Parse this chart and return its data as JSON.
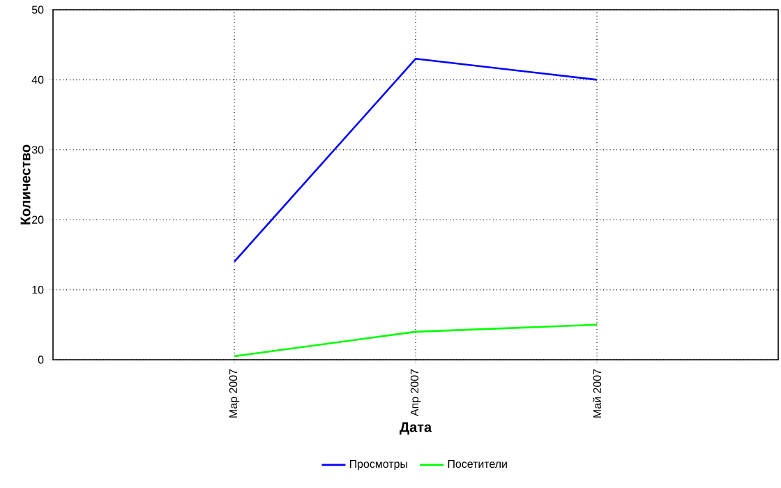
{
  "chart_data": {
    "type": "line",
    "xlabel": "Дата",
    "ylabel": "Количество",
    "categories": [
      "Мар 2007",
      "Апр 2007",
      "Май 2007"
    ],
    "series": [
      {
        "name": "Просмотры",
        "color": "#0000ff",
        "values": [
          14,
          43,
          40
        ]
      },
      {
        "name": "Посетители",
        "color": "#00ff00",
        "values": [
          0.5,
          4,
          5
        ]
      }
    ],
    "ylim": [
      0,
      50
    ],
    "yticks": [
      0,
      10,
      20,
      30,
      40,
      50
    ],
    "grid": true,
    "legend": "bottom",
    "marker": "none",
    "line_style": "solid"
  }
}
